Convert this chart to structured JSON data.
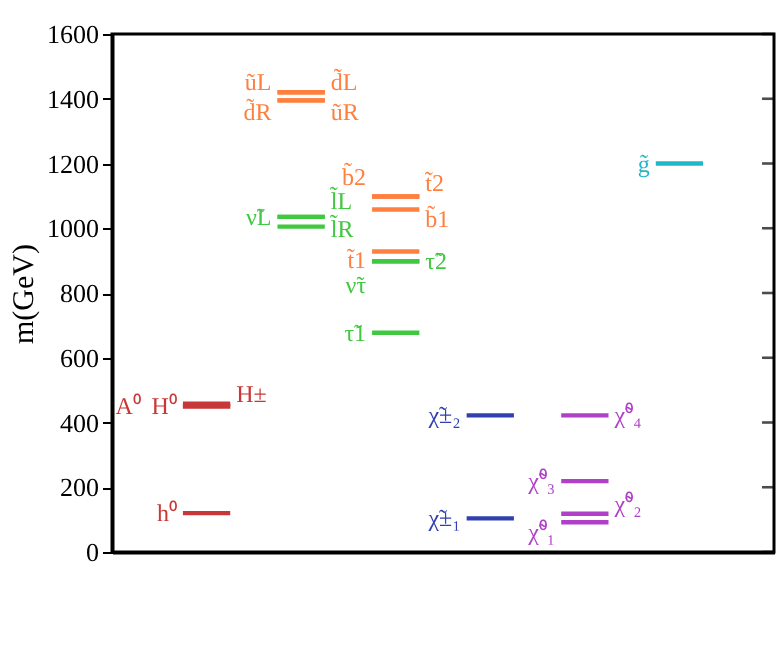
{
  "chart_data": {
    "type": "line",
    "ylabel": "m(GeV)",
    "categories": [
      null,
      null,
      null,
      null,
      null,
      null,
      null,
      null,
      null,
      null,
      null,
      null,
      null,
      null
    ],
    "ylim": [
      0,
      1600
    ],
    "yticks": [
      0,
      200,
      400,
      600,
      800,
      1000,
      1200,
      1400,
      1600
    ],
    "tick_labels": "y",
    "grid": false,
    "legend": false,
    "marker": "none",
    "line_style": "solid",
    "series": [
      {
        "name": "h⁰",
        "color": "#c83838",
        "values": [
          null,
          120,
          120,
          null,
          null,
          null,
          null,
          null,
          null,
          null,
          null,
          null,
          null,
          null
        ]
      },
      {
        "name": "A⁰",
        "color": "#c83838",
        "values": [
          null,
          450,
          450,
          null,
          null,
          null,
          null,
          null,
          null,
          null,
          null,
          null,
          null,
          null
        ]
      },
      {
        "name": "H⁰",
        "color": "#c83838",
        "values": [
          null,
          450,
          450,
          null,
          null,
          null,
          null,
          null,
          null,
          null,
          null,
          null,
          null,
          null
        ]
      },
      {
        "name": "H±",
        "color": "#c83838",
        "values": [
          null,
          458,
          458,
          null,
          null,
          null,
          null,
          null,
          null,
          null,
          null,
          null,
          null,
          null
        ]
      },
      {
        "name": "ũL",
        "color": "#ff7f3f",
        "values": [
          null,
          null,
          null,
          1420,
          1420,
          null,
          null,
          null,
          null,
          null,
          null,
          null,
          null,
          null
        ]
      },
      {
        "name": "d̃L",
        "color": "#ff7f3f",
        "values": [
          null,
          null,
          null,
          1420,
          1420,
          null,
          null,
          null,
          null,
          null,
          null,
          null,
          null,
          null
        ]
      },
      {
        "name": "d̃R",
        "color": "#ff7f3f",
        "values": [
          null,
          null,
          null,
          1395,
          1395,
          null,
          null,
          null,
          null,
          null,
          null,
          null,
          null,
          null
        ]
      },
      {
        "name": "ũR",
        "color": "#ff7f3f",
        "values": [
          null,
          null,
          null,
          1395,
          1395,
          null,
          null,
          null,
          null,
          null,
          null,
          null,
          null,
          null
        ]
      },
      {
        "name": "ν̃L",
        "color": "#40c840",
        "values": [
          null,
          null,
          null,
          1035,
          1035,
          null,
          null,
          null,
          null,
          null,
          null,
          null,
          null,
          null
        ]
      },
      {
        "name": "l̃L",
        "color": "#40c840",
        "values": [
          null,
          null,
          null,
          1035,
          1035,
          null,
          null,
          null,
          null,
          null,
          null,
          null,
          null,
          null
        ]
      },
      {
        "name": "l̃R",
        "color": "#40c840",
        "values": [
          null,
          null,
          null,
          1005,
          1005,
          null,
          null,
          null,
          null,
          null,
          null,
          null,
          null,
          null
        ]
      },
      {
        "name": "b̃2",
        "color": "#ff7f3f",
        "values": [
          null,
          null,
          null,
          null,
          null,
          1098,
          1098,
          null,
          null,
          null,
          null,
          null,
          null,
          null
        ]
      },
      {
        "name": "t̃2",
        "color": "#ff7f3f",
        "values": [
          null,
          null,
          null,
          null,
          null,
          1098,
          1098,
          null,
          null,
          null,
          null,
          null,
          null,
          null
        ]
      },
      {
        "name": "b̃1",
        "color": "#ff7f3f",
        "values": [
          null,
          null,
          null,
          null,
          null,
          1058,
          1058,
          null,
          null,
          null,
          null,
          null,
          null,
          null
        ]
      },
      {
        "name": "t̃1",
        "color": "#ff7f3f",
        "values": [
          null,
          null,
          null,
          null,
          null,
          928,
          928,
          null,
          null,
          null,
          null,
          null,
          null,
          null
        ]
      },
      {
        "name": "ν̃τ",
        "color": "#40c840",
        "values": [
          null,
          null,
          null,
          null,
          null,
          898,
          898,
          null,
          null,
          null,
          null,
          null,
          null,
          null
        ]
      },
      {
        "name": "τ̃2",
        "color": "#40c840",
        "values": [
          null,
          null,
          null,
          null,
          null,
          898,
          898,
          null,
          null,
          null,
          null,
          null,
          null,
          null
        ]
      },
      {
        "name": "τ̃1",
        "color": "#40c840",
        "values": [
          null,
          null,
          null,
          null,
          null,
          677,
          677,
          null,
          null,
          null,
          null,
          null,
          null,
          null
        ]
      },
      {
        "name": "χ̃±₂",
        "color": "#3040b0",
        "values": [
          null,
          null,
          null,
          null,
          null,
          null,
          null,
          422,
          422,
          null,
          null,
          null,
          null,
          null
        ]
      },
      {
        "name": "χ̃±₁",
        "color": "#3040b0",
        "values": [
          null,
          null,
          null,
          null,
          null,
          null,
          null,
          104,
          104,
          null,
          null,
          null,
          null,
          null
        ]
      },
      {
        "name": "χ̃⁰₄",
        "color": "#b040c8",
        "values": [
          null,
          null,
          null,
          null,
          null,
          null,
          null,
          null,
          null,
          422,
          422,
          null,
          null,
          null
        ]
      },
      {
        "name": "χ̃⁰₃",
        "color": "#b040c8",
        "values": [
          null,
          null,
          null,
          null,
          null,
          null,
          null,
          null,
          null,
          219,
          219,
          null,
          null,
          null
        ]
      },
      {
        "name": "χ̃⁰₂",
        "color": "#b040c8",
        "values": [
          null,
          null,
          null,
          null,
          null,
          null,
          null,
          null,
          null,
          118,
          118,
          null,
          null,
          null
        ]
      },
      {
        "name": "χ̃⁰₁",
        "color": "#b040c8",
        "values": [
          null,
          null,
          null,
          null,
          null,
          null,
          null,
          null,
          null,
          92,
          92,
          null,
          null,
          null
        ]
      },
      {
        "name": "g̃",
        "color": "#20b8c8",
        "values": [
          null,
          null,
          null,
          null,
          null,
          null,
          null,
          null,
          null,
          null,
          null,
          1200,
          1200,
          null
        ]
      }
    ]
  }
}
